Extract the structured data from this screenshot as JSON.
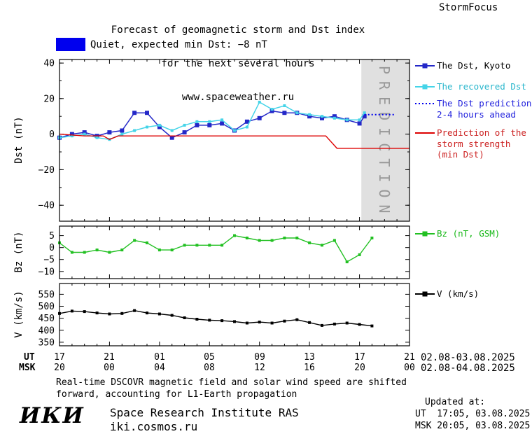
{
  "header": {
    "title_line1": "Forecast of geomagnetic storm and Dst index",
    "title_line2": "for the next several hours",
    "title_line3": "www.spaceweather.ru",
    "brand": "StormFocus"
  },
  "status_banner": {
    "text": "Quiet, expected min Dst: −8 nT",
    "swatch_color": "#0000ee"
  },
  "legend": {
    "entries": [
      {
        "id": "kyoto",
        "lines": [
          "The Dst, Kyoto"
        ],
        "color": "#2428c8",
        "text_color": "#000000",
        "marker": "square-line"
      },
      {
        "id": "recovered",
        "lines": [
          "The recovered Dst"
        ],
        "color": "#45d4e8",
        "text_color": "#28b6cc",
        "marker": "square-line"
      },
      {
        "id": "prediction",
        "lines": [
          "The Dst prediction",
          "2-4 hours ahead"
        ],
        "color": "#0000ee",
        "text_color": "#2222dd",
        "marker": "dotted-line"
      },
      {
        "id": "storm",
        "lines": [
          "Prediction of the",
          "storm strength",
          "(min Dst)"
        ],
        "color": "#dd0000",
        "text_color": "#cc2222",
        "marker": "line"
      },
      {
        "id": "bz",
        "lines": [
          "Bz (nT, GSM)"
        ],
        "color": "#22c022",
        "text_color": "#18b818",
        "marker": "square-line"
      },
      {
        "id": "v",
        "lines": [
          "V (km/s)"
        ],
        "color": "#000000",
        "text_color": "#000000",
        "marker": "square-line"
      }
    ]
  },
  "axes": {
    "ut_label": "UT",
    "msk_label": "MSK",
    "ut_ticks": [
      "17",
      "21",
      "01",
      "05",
      "09",
      "13",
      "17",
      "21"
    ],
    "msk_ticks": [
      "20",
      "00",
      "04",
      "08",
      "12",
      "16",
      "20",
      "00"
    ],
    "ut_daterange": "02.08-03.08.2025",
    "msk_daterange": "02.08-04.08.2025"
  },
  "footer": {
    "note_line1": "Real-time DSCOVR magnetic field and solar wind speed are shifted",
    "note_line2": "forward, accounting for L1-Earth propagation",
    "logo": "ИКИ",
    "institute": "Space Research Institute RAS",
    "site": "iki.cosmos.ru",
    "updated_label": "Updated at:",
    "updated_ut": "UT  17:05, 03.08.2025",
    "updated_msk": "MSK 20:05, 03.08.2025"
  },
  "chart_data": [
    {
      "id": "dst",
      "type": "line",
      "ylabel": "Dst (nT)",
      "xlim": [
        0,
        28
      ],
      "ylim": [
        -49,
        42
      ],
      "yticks": [
        -40,
        -20,
        0,
        20,
        40
      ],
      "yminor": 10,
      "xmajor": [
        0,
        4,
        8,
        12,
        16,
        20,
        24,
        28
      ],
      "xminor": 1,
      "bands": [
        {
          "x0": 24.15,
          "x1": 28,
          "color": "#e0e0e0",
          "label": "PREDICTION",
          "label_color": "#999999"
        }
      ],
      "series": [
        {
          "name": "The Dst, Kyoto",
          "color": "#2428c8",
          "width": 1.5,
          "marker": true,
          "msize": 6,
          "x": [
            0,
            1,
            2,
            3,
            4,
            5,
            6,
            7,
            8,
            9,
            10,
            11,
            12,
            13,
            14,
            15,
            16,
            17,
            18,
            19,
            20,
            21,
            22,
            23,
            24,
            24.4
          ],
          "y": [
            -2,
            0,
            1,
            -1,
            1,
            2,
            12,
            12,
            4,
            -2,
            1,
            5,
            5,
            6,
            2,
            7,
            9,
            13,
            12,
            12,
            10,
            9,
            10,
            8,
            6,
            10
          ]
        },
        {
          "name": "The recovered Dst",
          "color": "#45d4e8",
          "width": 1.5,
          "marker": true,
          "msize": 4,
          "x": [
            0,
            1,
            2,
            3,
            4,
            5,
            6,
            7,
            8,
            9,
            10,
            11,
            12,
            13,
            14,
            15,
            16,
            17,
            18,
            19,
            20,
            21,
            22,
            23,
            24,
            24.4
          ],
          "y": [
            -2,
            -1,
            0,
            -2,
            -3,
            0,
            2,
            4,
            5,
            2,
            5,
            7,
            7,
            8,
            2,
            4,
            18,
            14,
            16,
            12,
            11,
            10,
            9,
            8,
            8,
            12
          ]
        },
        {
          "name": "The Dst prediction 2-4 hours ahead",
          "color": "#0000ee",
          "width": 2,
          "dash": "2,3",
          "x": [
            24.4,
            26.8
          ],
          "y": [
            11,
            11
          ]
        },
        {
          "name": "Prediction of the storm strength (min Dst)",
          "color": "#dd0000",
          "width": 1.4,
          "x": [
            0,
            2,
            3.5,
            4,
            4.7,
            6,
            21.3,
            22.2,
            28
          ],
          "y": [
            0,
            -1,
            -1,
            -3,
            -1,
            -1,
            -1,
            -8,
            -8
          ]
        }
      ]
    },
    {
      "id": "bz",
      "type": "line",
      "ylabel": "Bz (nT)",
      "xlim": [
        0,
        28
      ],
      "ylim": [
        -13,
        9
      ],
      "yticks": [
        5,
        0,
        -5,
        -10
      ],
      "xmajor": [
        0,
        4,
        8,
        12,
        16,
        20,
        24,
        28
      ],
      "xminor": 1,
      "series": [
        {
          "name": "Bz (nT, GSM)",
          "color": "#22c022",
          "width": 1.4,
          "marker": true,
          "msize": 4,
          "x": [
            0,
            1,
            2,
            3,
            4,
            5,
            6,
            7,
            8,
            9,
            10,
            11,
            12,
            13,
            14,
            15,
            16,
            17,
            18,
            19,
            20,
            21,
            22,
            23,
            24,
            25
          ],
          "y": [
            2,
            -2,
            -2,
            -1,
            -2,
            -1,
            3,
            2,
            -1,
            -1,
            1,
            1,
            1,
            1,
            5,
            4,
            3,
            3,
            4,
            4,
            2,
            1,
            3,
            -6,
            -3,
            4
          ]
        }
      ]
    },
    {
      "id": "v",
      "type": "line",
      "ylabel": "V (km/s)",
      "xlim": [
        0,
        28
      ],
      "ylim": [
        335,
        595
      ],
      "yticks": [
        550,
        500,
        450,
        400,
        350
      ],
      "xmajor": [
        0,
        4,
        8,
        12,
        16,
        20,
        24,
        28
      ],
      "xminor": 1,
      "series": [
        {
          "name": "V (km/s)",
          "color": "#000000",
          "width": 1.4,
          "marker": true,
          "msize": 4,
          "x": [
            0,
            1,
            2,
            3,
            4,
            5,
            6,
            7,
            8,
            9,
            10,
            11,
            12,
            13,
            14,
            15,
            16,
            17,
            18,
            19,
            20,
            21,
            22,
            23,
            24,
            25
          ],
          "y": [
            470,
            480,
            478,
            472,
            468,
            470,
            482,
            472,
            468,
            462,
            452,
            446,
            442,
            440,
            436,
            430,
            434,
            430,
            438,
            444,
            432,
            420,
            426,
            430,
            424,
            418
          ]
        }
      ]
    }
  ]
}
